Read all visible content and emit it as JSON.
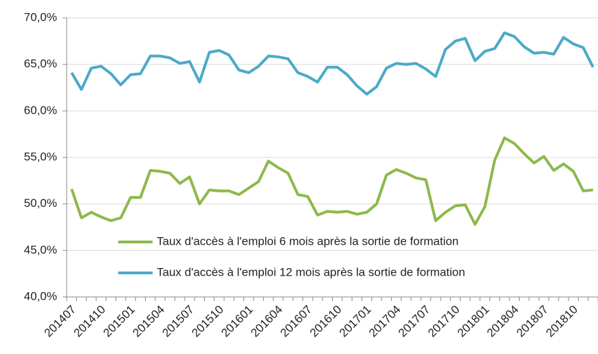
{
  "chart_data": {
    "type": "line",
    "categories": [
      "201407",
      null,
      null,
      "201410",
      null,
      null,
      "201501",
      null,
      null,
      "201504",
      null,
      null,
      "201507",
      null,
      null,
      "201510",
      null,
      null,
      "201601",
      null,
      null,
      "201604",
      null,
      null,
      "201607",
      null,
      null,
      "201610",
      null,
      null,
      "201701",
      null,
      null,
      "201704",
      null,
      null,
      "201707",
      null,
      null,
      "201710",
      null,
      null,
      "201801",
      null,
      null,
      "201804",
      null,
      null,
      "201807",
      null,
      null,
      "201810",
      null,
      null
    ],
    "series": [
      {
        "name": "Taux d'accès à l'emploi 6 mois après la sortie de formation",
        "color": "#8db94c",
        "values": [
          51.6,
          48.5,
          49.1,
          48.6,
          48.2,
          48.5,
          50.7,
          50.7,
          53.6,
          53.5,
          53.3,
          52.2,
          52.9,
          50.0,
          51.5,
          51.4,
          51.4,
          51.0,
          51.7,
          52.4,
          54.6,
          53.9,
          53.3,
          51.0,
          50.8,
          48.8,
          49.2,
          49.1,
          49.2,
          48.9,
          49.1,
          50.0,
          53.1,
          53.7,
          53.3,
          52.8,
          52.6,
          48.2,
          49.1,
          49.8,
          49.9,
          47.8,
          49.7,
          54.7,
          57.1,
          56.5,
          55.4,
          54.4,
          55.1,
          53.6,
          54.3,
          53.5,
          51.4,
          51.5
        ]
      },
      {
        "name": "Taux d'accès à l'emploi 12 mois après la sortie de formation",
        "color": "#4aaac8",
        "values": [
          64.1,
          62.3,
          64.6,
          64.8,
          64.0,
          62.8,
          63.9,
          64.0,
          65.9,
          65.9,
          65.7,
          65.1,
          65.3,
          63.1,
          66.3,
          66.5,
          66.0,
          64.4,
          64.1,
          64.8,
          65.9,
          65.8,
          65.6,
          64.1,
          63.7,
          63.1,
          64.7,
          64.7,
          63.9,
          62.7,
          61.8,
          62.6,
          64.6,
          65.1,
          65.0,
          65.1,
          64.5,
          63.7,
          66.6,
          67.5,
          67.8,
          65.4,
          66.4,
          66.7,
          68.4,
          68.0,
          66.9,
          66.2,
          66.3,
          66.1,
          67.9,
          67.2,
          66.8,
          64.7
        ]
      }
    ],
    "ylim": [
      40,
      70
    ],
    "yticks": [
      {
        "value": 40,
        "label": "40,0%"
      },
      {
        "value": 45,
        "label": "45,0%"
      },
      {
        "value": 50,
        "label": "50,0%"
      },
      {
        "value": 55,
        "label": "55,0%"
      },
      {
        "value": 60,
        "label": "60,0%"
      },
      {
        "value": 65,
        "label": "65,0%"
      },
      {
        "value": 70,
        "label": "70,0%"
      }
    ],
    "grid": true
  }
}
